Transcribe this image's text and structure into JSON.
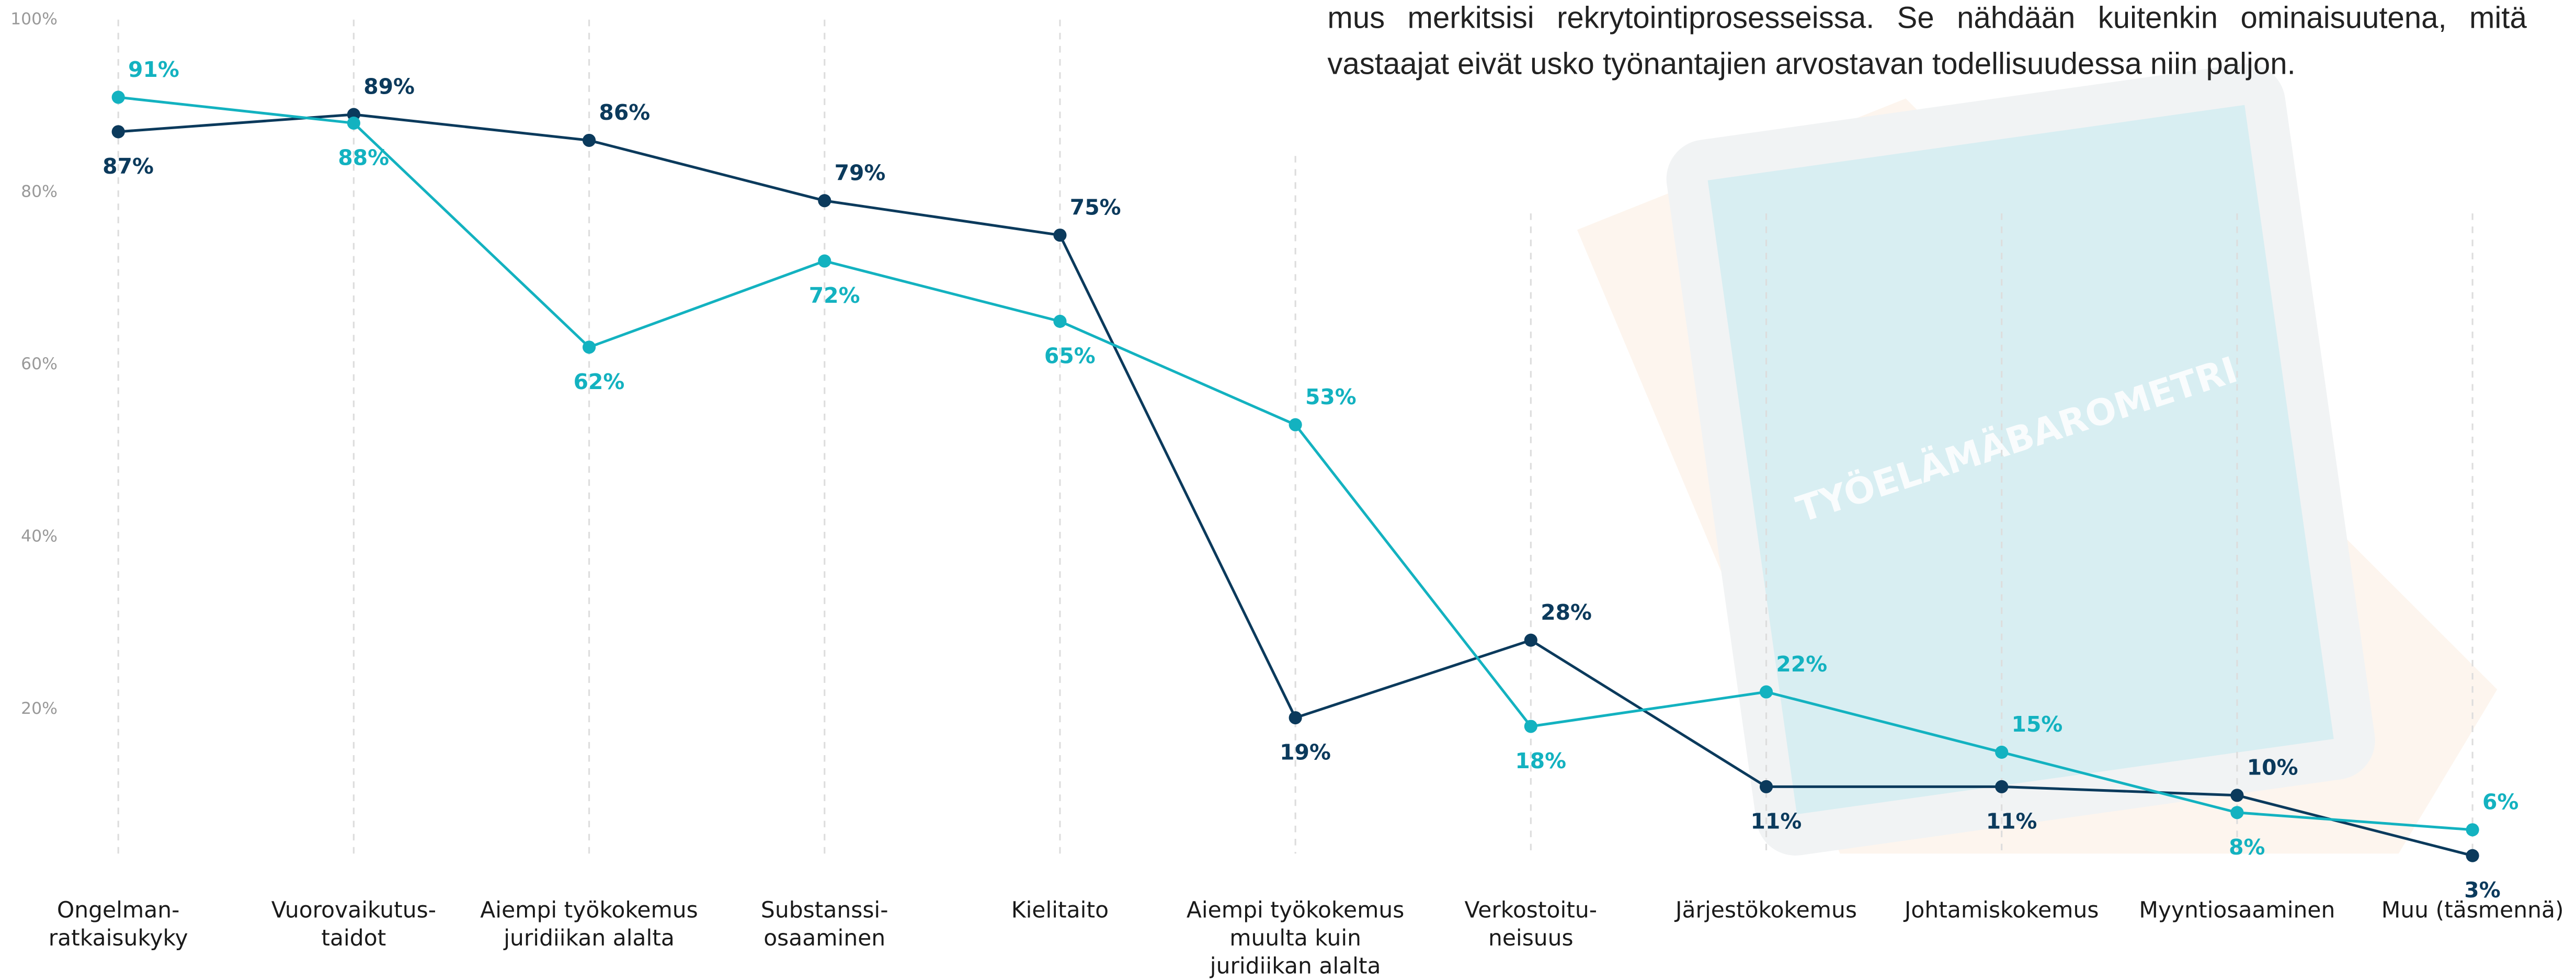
{
  "body_text": "mus merkitsisi rekrytointiprosesseissa. Se nähdään kuitenkin ominaisuutena, mitä vastaajat eivät usko työnantajien arvostavan todellisuudessa niin paljon.",
  "background_text": "TYÖELÄMÄBAROMETRI",
  "chart_data": {
    "type": "line",
    "categories": [
      "Ongelman-\nratkaisukyky",
      "Vuorovaikutus-\ntaidot",
      "Aiempi työkokemus\njuridiikan alalta",
      "Substanssi-\nosaaminen",
      "Kielitaito",
      "Aiempi työkokemus\nmuulta kuin\njuridiikan alalta",
      "Verkostoitu-\nneisuus",
      "Järjestökokemus",
      "Johtamiskokemus",
      "Myyntiosaaminen",
      "Muu (täsmennä)"
    ],
    "series": [
      {
        "color": "#0b3a5c",
        "values": [
          87,
          89,
          86,
          79,
          75,
          19,
          28,
          11,
          11,
          10,
          3
        ],
        "value_labels": [
          "87%",
          "89%",
          "86%",
          "79%",
          "75%",
          "19%",
          "28%",
          "11%",
          "11%",
          "10%",
          "3%"
        ]
      },
      {
        "color": "#13b2c0",
        "values": [
          91,
          88,
          62,
          72,
          65,
          53,
          18,
          22,
          15,
          8,
          6
        ],
        "value_labels": [
          "91%",
          "88%",
          "62%",
          "72%",
          "65%",
          "53%",
          "18%",
          "22%",
          "15%",
          "8%",
          "6%"
        ]
      }
    ],
    "ylim": [
      0,
      100
    ],
    "yticks": [
      {
        "value": 20,
        "label": "20%"
      },
      {
        "value": 40,
        "label": "40%"
      },
      {
        "value": 60,
        "label": "60%"
      },
      {
        "value": 80,
        "label": "80%"
      },
      {
        "value": 100,
        "label": "100%"
      }
    ],
    "grid": true
  }
}
